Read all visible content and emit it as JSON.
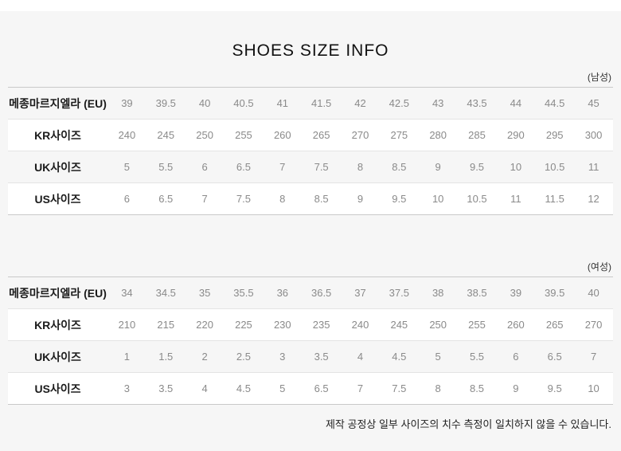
{
  "page": {
    "title": "SHOES SIZE INFO",
    "footer_note": "제작 공정상 일부 사이즈의 치수 측정이 일치하지 않을 수 있습니다."
  },
  "tables": [
    {
      "section_label": "(남성)",
      "rows": [
        {
          "label": "메종마르지엘라 (EU)",
          "values": [
            "39",
            "39.5",
            "40",
            "40.5",
            "41",
            "41.5",
            "42",
            "42.5",
            "43",
            "43.5",
            "44",
            "44.5",
            "45"
          ]
        },
        {
          "label": "KR사이즈",
          "values": [
            "240",
            "245",
            "250",
            "255",
            "260",
            "265",
            "270",
            "275",
            "280",
            "285",
            "290",
            "295",
            "300"
          ]
        },
        {
          "label": "UK사이즈",
          "values": [
            "5",
            "5.5",
            "6",
            "6.5",
            "7",
            "7.5",
            "8",
            "8.5",
            "9",
            "9.5",
            "10",
            "10.5",
            "11"
          ]
        },
        {
          "label": "US사이즈",
          "values": [
            "6",
            "6.5",
            "7",
            "7.5",
            "8",
            "8.5",
            "9",
            "9.5",
            "10",
            "10.5",
            "11",
            "11.5",
            "12"
          ]
        }
      ]
    },
    {
      "section_label": "(여성)",
      "rows": [
        {
          "label": "메종마르지엘라 (EU)",
          "values": [
            "34",
            "34.5",
            "35",
            "35.5",
            "36",
            "36.5",
            "37",
            "37.5",
            "38",
            "38.5",
            "39",
            "39.5",
            "40"
          ]
        },
        {
          "label": "KR사이즈",
          "values": [
            "210",
            "215",
            "220",
            "225",
            "230",
            "235",
            "240",
            "245",
            "250",
            "255",
            "260",
            "265",
            "270"
          ]
        },
        {
          "label": "UK사이즈",
          "values": [
            "1",
            "1.5",
            "2",
            "2.5",
            "3",
            "3.5",
            "4",
            "4.5",
            "5",
            "5.5",
            "6",
            "6.5",
            "7"
          ]
        },
        {
          "label": "US사이즈",
          "values": [
            "3",
            "3.5",
            "4",
            "4.5",
            "5",
            "6.5",
            "7",
            "7.5",
            "8",
            "8.5",
            "9",
            "9.5",
            "10"
          ]
        }
      ]
    }
  ],
  "colors": {
    "page_bg": "#f6f6f6",
    "row_alt_bg": "#ffffff",
    "table_border": "#c9c9c9",
    "row_divider": "#e4e4e4",
    "label_text": "#1b1b1b",
    "value_text": "#8a8a8a",
    "title_text": "#111111"
  }
}
